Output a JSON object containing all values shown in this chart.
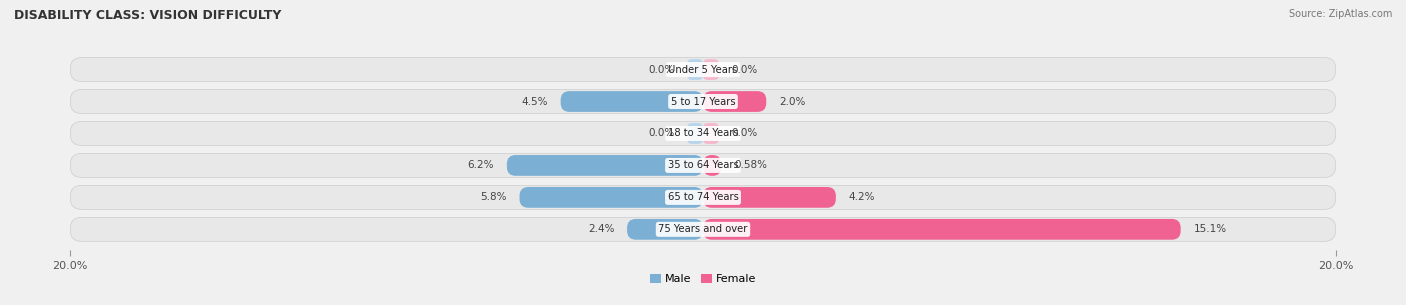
{
  "title": "DISABILITY CLASS: VISION DIFFICULTY",
  "source": "Source: ZipAtlas.com",
  "categories": [
    "Under 5 Years",
    "5 to 17 Years",
    "18 to 34 Years",
    "35 to 64 Years",
    "65 to 74 Years",
    "75 Years and over"
  ],
  "male_values": [
    0.0,
    4.5,
    0.0,
    6.2,
    5.8,
    2.4
  ],
  "female_values": [
    0.0,
    2.0,
    0.0,
    0.58,
    4.2,
    15.1
  ],
  "male_labels": [
    "0.0%",
    "4.5%",
    "0.0%",
    "6.2%",
    "5.8%",
    "2.4%"
  ],
  "female_labels": [
    "0.0%",
    "2.0%",
    "0.0%",
    "0.58%",
    "4.2%",
    "15.1%"
  ],
  "male_color": "#7bafd4",
  "female_color": "#f06292",
  "male_color_light": "#b8d4ea",
  "female_color_light": "#f4b8cb",
  "axis_limit": 20.0,
  "legend_male": "Male",
  "legend_female": "Female",
  "figsize": [
    14.06,
    3.05
  ],
  "dpi": 100,
  "bg_color": "#f0f0f0",
  "row_color": "#e8e8e8"
}
